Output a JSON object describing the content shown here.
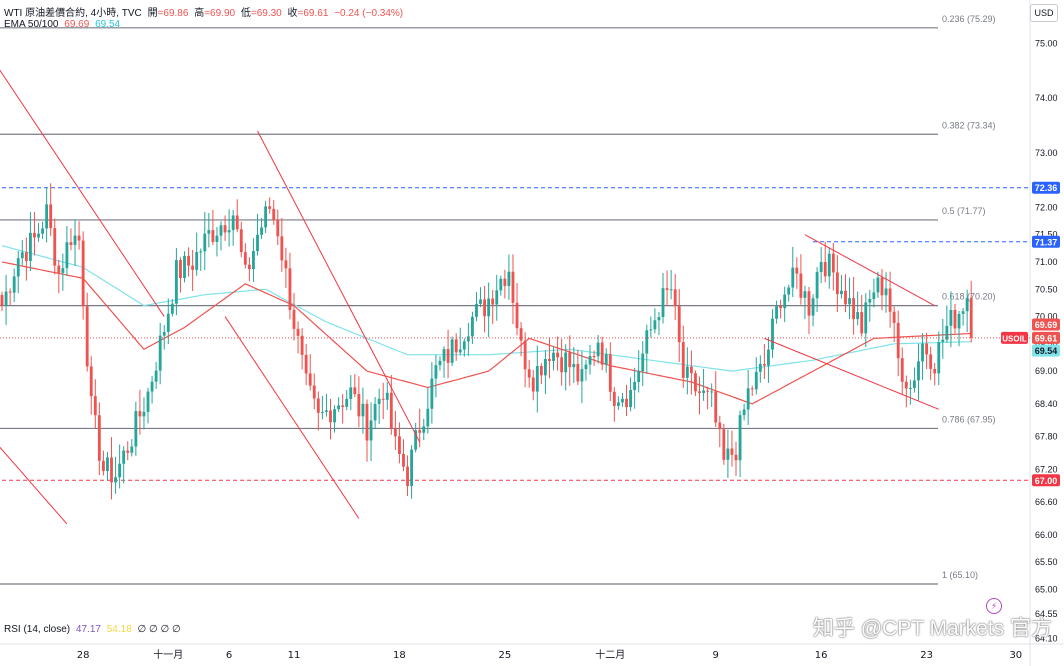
{
  "legend": {
    "symbol": "WTI 原油差價合約, 4小時, TVC",
    "open_label": "開",
    "open": "=69.86",
    "high_label": "高",
    "high": "=69.90",
    "low_label": "低",
    "low": "=69.30",
    "close_label": "收",
    "close": "=69.61",
    "change": "−0.24 (−0.34%)",
    "ema_label": "EMA 50/100",
    "ema50": "69.69",
    "ema100": "69.54",
    "rsi_label": "RSI (14, close)",
    "rsi_value": "47.17",
    "rsi_ma": "54.18",
    "rsi_extras": "∅ ∅ ∅ ∅"
  },
  "currency_button": "USD",
  "watermark": "知乎 @CPT Markets 官方",
  "colors": {
    "up": "#26a69a",
    "down": "#ef5350",
    "ema50": "#ef5350",
    "ema100": "#7fe3ea",
    "fib": "#787b86",
    "trend": "#f23645",
    "level_blue": "#2962ff",
    "level_red": "#f23645",
    "symbol_tag": "#f23645"
  },
  "chart_data": {
    "type": "candlestick",
    "instrument": "USOIL",
    "timeframe": "4小時",
    "ylim": [
      64.0,
      75.8
    ],
    "y_ticks": [
      64.1,
      64.55,
      65.0,
      65.5,
      66.0,
      66.6,
      67.2,
      67.8,
      68.4,
      69.0,
      69.5,
      70.0,
      70.5,
      71.0,
      71.5,
      72.0,
      73.0,
      74.0,
      75.0
    ],
    "x_ticks": [
      {
        "label": "28",
        "bar": 20
      },
      {
        "label": "十一月",
        "bar": 41
      },
      {
        "label": "6",
        "bar": 56
      },
      {
        "label": "11",
        "bar": 72
      },
      {
        "label": "18",
        "bar": 98
      },
      {
        "label": "25",
        "bar": 124
      },
      {
        "label": "十二月",
        "bar": 150
      },
      {
        "label": "9",
        "bar": 176
      },
      {
        "label": "16",
        "bar": 202
      },
      {
        "label": "23",
        "bar": 228
      },
      {
        "label": "30",
        "bar": 250
      }
    ],
    "bars_total": 254,
    "anchors": [
      [
        0,
        70.2
      ],
      [
        4,
        71.1
      ],
      [
        8,
        71.4
      ],
      [
        11,
        71.9
      ],
      [
        14,
        70.8
      ],
      [
        17,
        71.5
      ],
      [
        19,
        71.4
      ],
      [
        22,
        68.3
      ],
      [
        25,
        67.2
      ],
      [
        28,
        67.1
      ],
      [
        32,
        67.8
      ],
      [
        36,
        68.6
      ],
      [
        40,
        69.8
      ],
      [
        43,
        70.8
      ],
      [
        47,
        71.0
      ],
      [
        51,
        71.5
      ],
      [
        54,
        71.7
      ],
      [
        57,
        71.9
      ],
      [
        60,
        70.7
      ],
      [
        63,
        71.5
      ],
      [
        66,
        72.0
      ],
      [
        68,
        71.6
      ],
      [
        72,
        69.9
      ],
      [
        75,
        68.7
      ],
      [
        78,
        68.1
      ],
      [
        82,
        68.4
      ],
      [
        86,
        68.6
      ],
      [
        90,
        68.0
      ],
      [
        94,
        68.7
      ],
      [
        97,
        67.6
      ],
      [
        100,
        67.1
      ],
      [
        103,
        68.0
      ],
      [
        107,
        69.0
      ],
      [
        111,
        69.4
      ],
      [
        115,
        69.9
      ],
      [
        119,
        70.2
      ],
      [
        122,
        70.6
      ],
      [
        125,
        70.9
      ],
      [
        128,
        69.4
      ],
      [
        131,
        68.9
      ],
      [
        135,
        69.4
      ],
      [
        139,
        69.2
      ],
      [
        143,
        68.8
      ],
      [
        147,
        69.6
      ],
      [
        151,
        68.6
      ],
      [
        155,
        68.6
      ],
      [
        158,
        69.3
      ],
      [
        162,
        70.2
      ],
      [
        165,
        70.5
      ],
      [
        168,
        68.9
      ],
      [
        172,
        68.6
      ],
      [
        175,
        68.4
      ],
      [
        178,
        67.3
      ],
      [
        181,
        67.6
      ],
      [
        184,
        68.6
      ],
      [
        188,
        69.1
      ],
      [
        192,
        70.4
      ],
      [
        196,
        70.7
      ],
      [
        199,
        70.2
      ],
      [
        202,
        71.1
      ],
      [
        205,
        70.8
      ],
      [
        208,
        70.4
      ],
      [
        212,
        69.8
      ],
      [
        215,
        70.5
      ],
      [
        218,
        70.6
      ],
      [
        221,
        69.2
      ],
      [
        224,
        68.7
      ],
      [
        227,
        69.5
      ],
      [
        230,
        69.2
      ],
      [
        233,
        69.8
      ],
      [
        236,
        70.1
      ],
      [
        238,
        70.4
      ],
      [
        239,
        69.61
      ]
    ],
    "ema_anchors": {
      "ema50": [
        [
          0,
          71.0
        ],
        [
          20,
          70.7
        ],
        [
          35,
          69.4
        ],
        [
          45,
          69.8
        ],
        [
          60,
          70.6
        ],
        [
          72,
          70.2
        ],
        [
          90,
          69.0
        ],
        [
          105,
          68.7
        ],
        [
          120,
          69.0
        ],
        [
          130,
          69.6
        ],
        [
          150,
          69.1
        ],
        [
          170,
          68.8
        ],
        [
          185,
          68.4
        ],
        [
          200,
          69.0
        ],
        [
          215,
          69.6
        ],
        [
          239,
          69.69
        ]
      ],
      "ema100": [
        [
          0,
          71.3
        ],
        [
          20,
          70.9
        ],
        [
          35,
          70.2
        ],
        [
          50,
          70.4
        ],
        [
          65,
          70.5
        ],
        [
          80,
          69.9
        ],
        [
          100,
          69.3
        ],
        [
          120,
          69.3
        ],
        [
          140,
          69.4
        ],
        [
          160,
          69.2
        ],
        [
          180,
          69.0
        ],
        [
          200,
          69.2
        ],
        [
          220,
          69.5
        ],
        [
          239,
          69.54
        ]
      ]
    },
    "fib_levels": [
      {
        "label": "0.236 (75.29)",
        "value": 75.29
      },
      {
        "label": "0.382 (73.34)",
        "value": 73.34
      },
      {
        "label": "0.5 (71.77)",
        "value": 71.77
      },
      {
        "label": "0.618 (70.20)",
        "value": 70.2
      },
      {
        "label": "0.786 (67.95)",
        "value": 67.95
      },
      {
        "label": "1 (65.10)",
        "value": 65.1
      }
    ],
    "horizontal_levels": [
      {
        "value": 72.36,
        "label": "72.36",
        "style": "blue-dashed",
        "from_bar": 0
      },
      {
        "value": 71.37,
        "label": "71.37",
        "style": "blue-dashed",
        "from_bar": 200
      },
      {
        "value": 67.0,
        "label": "67.00",
        "style": "red-dashed",
        "from_bar": 0
      }
    ],
    "trend_lines": [
      {
        "from": [
          -4,
          74.9
        ],
        "to": [
          40,
          70.0
        ]
      },
      {
        "from": [
          -4,
          67.9
        ],
        "to": [
          16,
          66.2
        ]
      },
      {
        "from": [
          63,
          73.4
        ],
        "to": [
          103,
          67.7
        ]
      },
      {
        "from": [
          55,
          70.0
        ],
        "to": [
          88,
          66.3
        ]
      },
      {
        "from": [
          198,
          71.5
        ],
        "to": [
          230,
          70.2
        ]
      },
      {
        "from": [
          188,
          69.6
        ],
        "to": [
          231,
          68.3
        ]
      }
    ],
    "price_tags": [
      {
        "label": "72.36",
        "value": 72.36,
        "kind": "blue"
      },
      {
        "label": "71.37",
        "value": 71.37,
        "kind": "blue"
      },
      {
        "label": "69.69",
        "value": 69.69,
        "kind": "ema50"
      },
      {
        "label": "69.61",
        "value": 69.61,
        "kind": "close"
      },
      {
        "label": "69.54",
        "value": 69.54,
        "kind": "ema100"
      },
      {
        "label": "67.00",
        "value": 67.0,
        "kind": "red"
      }
    ],
    "symbol_tag": "USOIL",
    "last_close": 69.61
  }
}
